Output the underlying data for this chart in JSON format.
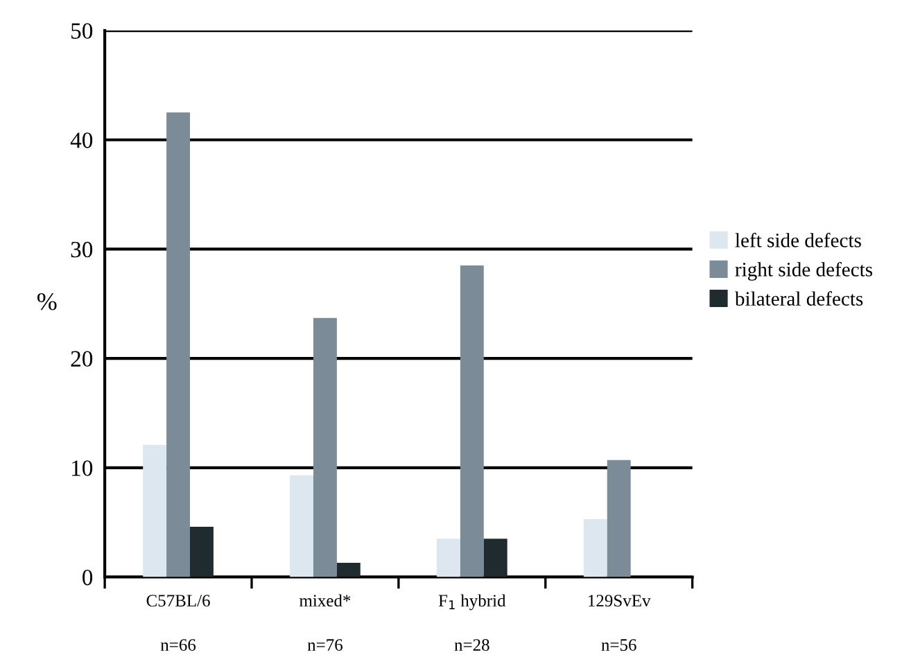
{
  "chart_data": {
    "type": "bar",
    "ylabel": "%",
    "categories": [
      "C57BL/6",
      "mixed*",
      "F$_{1}$ hybrid",
      "129SvEv"
    ],
    "series": [
      {
        "name": "left side defects",
        "color": "#dce7ef",
        "values": [
          12.1,
          9.3,
          3.5,
          5.3
        ]
      },
      {
        "name": "right side defects",
        "color": "#7b8b97",
        "values": [
          42.5,
          23.7,
          28.5,
          10.7
        ]
      },
      {
        "name": "bilateral defects",
        "color": "#1f2b2f",
        "values": [
          4.6,
          1.3,
          3.5,
          0
        ]
      }
    ],
    "ylim": [
      0,
      50
    ],
    "yticks": [
      0,
      10,
      20,
      30,
      40,
      50
    ],
    "grid": "y",
    "legend": "right",
    "annotations": [
      "n=66",
      "n=76",
      "n=28",
      "n=56"
    ]
  }
}
